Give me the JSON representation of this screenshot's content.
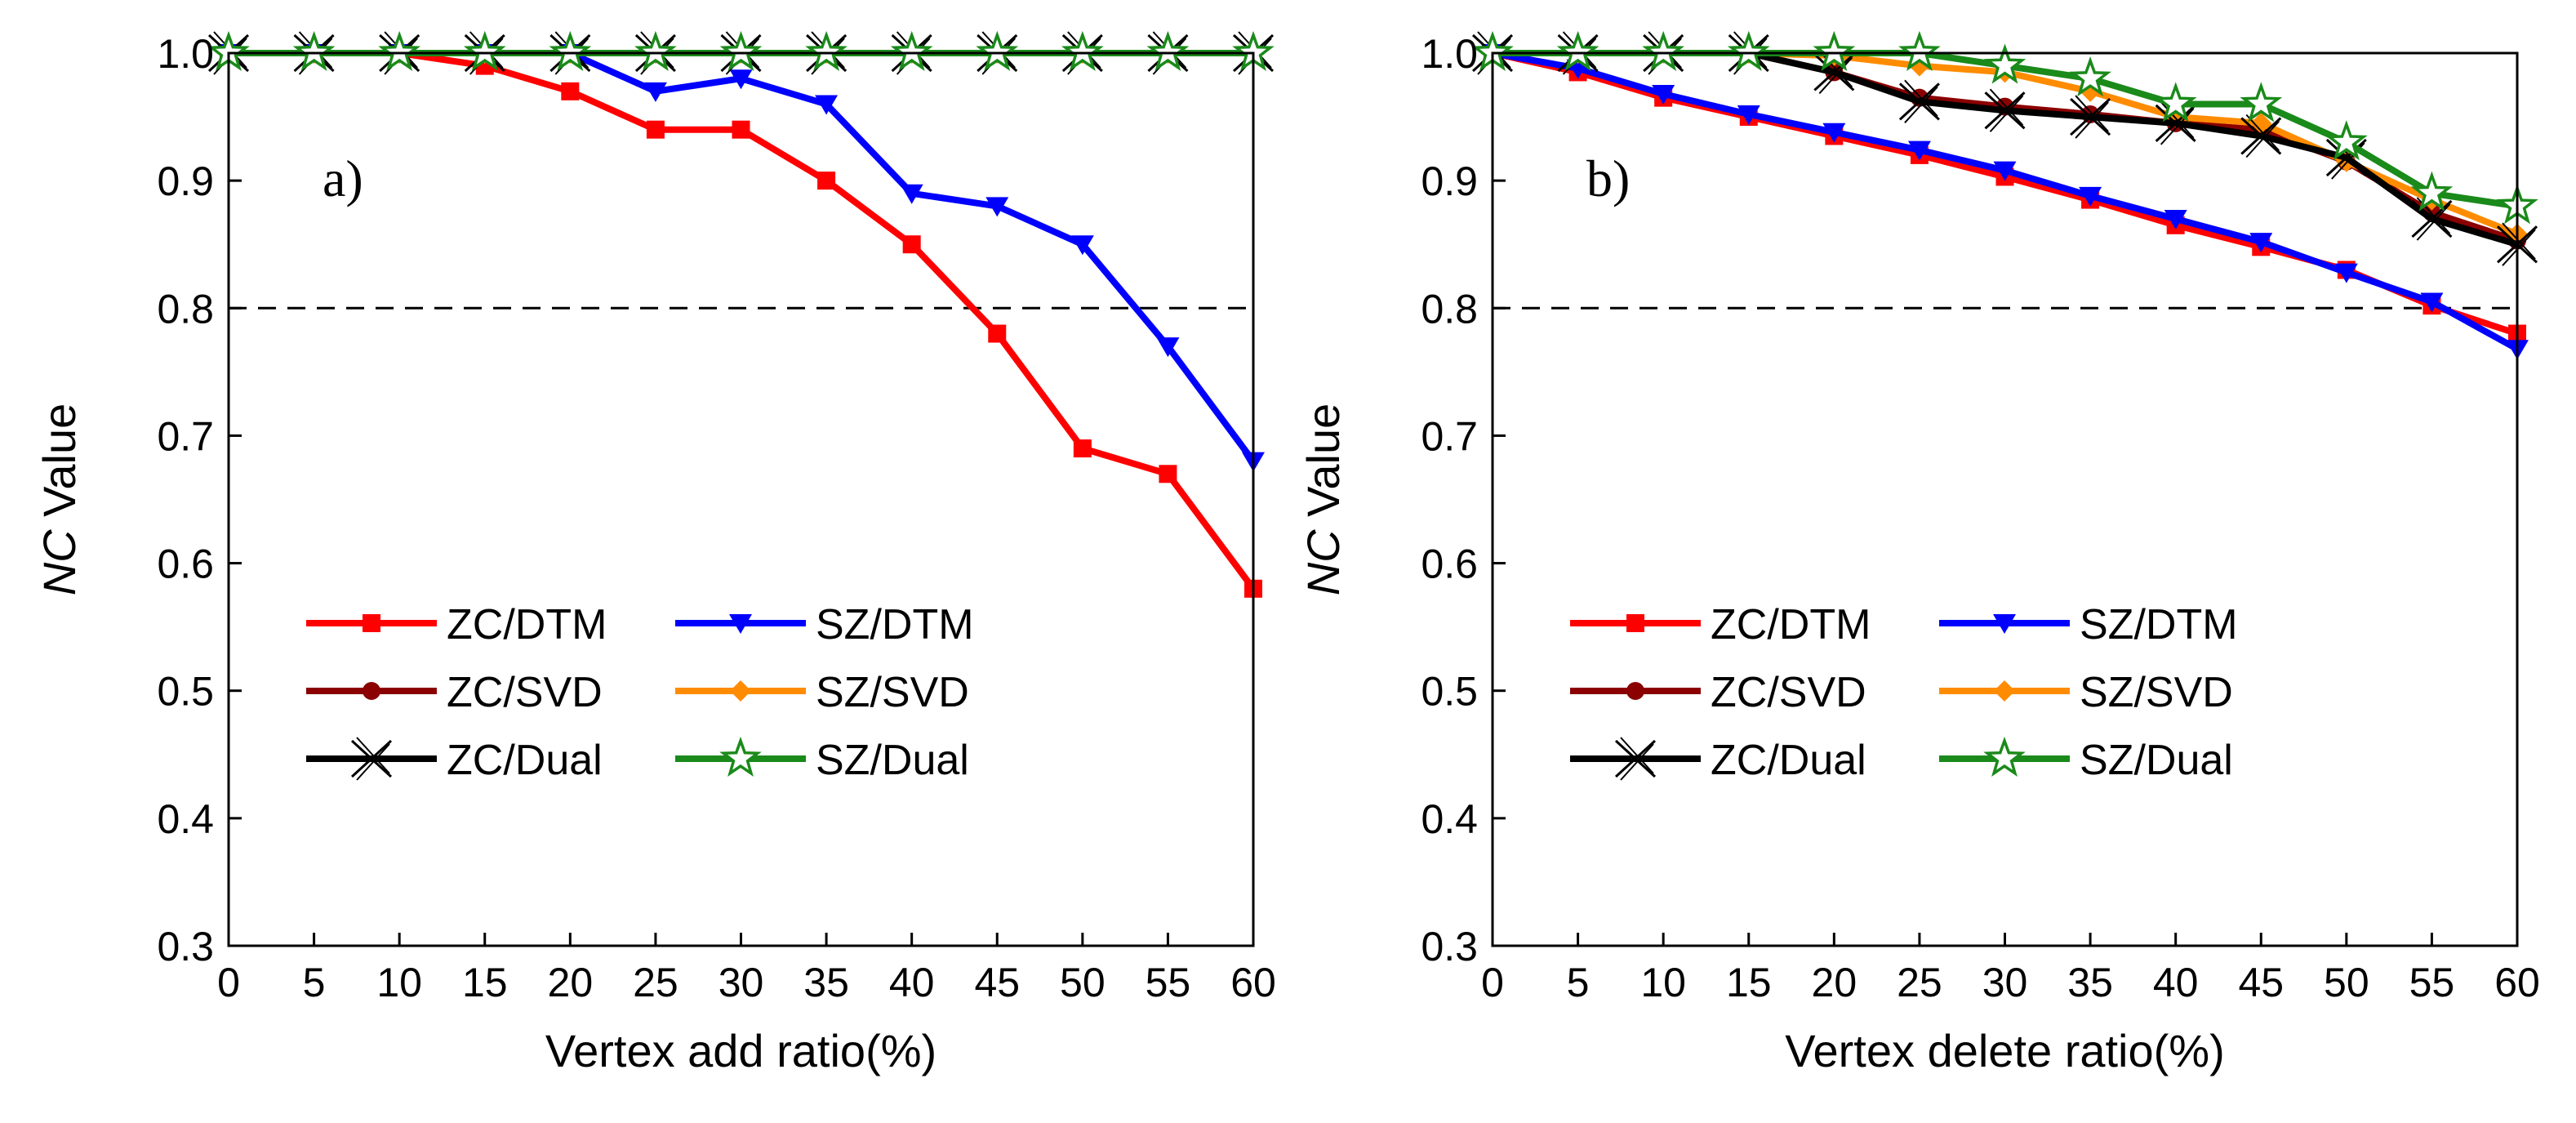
{
  "chart_data": [
    {
      "type": "line",
      "panel_label": "a)",
      "xlabel": "Vertex add ratio(%)",
      "ylabel_italic": "NC",
      "ylabel_rest": " Value",
      "xlim": [
        0,
        60
      ],
      "ylim": [
        0.3,
        1.0
      ],
      "x": [
        0,
        5,
        10,
        15,
        20,
        25,
        30,
        35,
        40,
        45,
        50,
        55,
        60
      ],
      "xticks": [
        "0",
        "5",
        "10",
        "15",
        "20",
        "25",
        "30",
        "35",
        "40",
        "45",
        "50",
        "55",
        "60"
      ],
      "yticks": [
        "0.3",
        "0.4",
        "0.5",
        "0.6",
        "0.7",
        "0.8",
        "0.9",
        "1.0"
      ],
      "threshold": 0.8,
      "legend_position": "lower-left",
      "series": [
        {
          "name": "ZC/DTM",
          "color": "#ff0000",
          "marker": "square",
          "values": [
            1.0,
            1.0,
            1.0,
            0.99,
            0.97,
            0.94,
            0.94,
            0.9,
            0.85,
            0.78,
            0.69,
            0.67,
            0.58
          ]
        },
        {
          "name": "SZ/DTM",
          "color": "#0000ff",
          "marker": "triangle-down",
          "values": [
            1.0,
            1.0,
            1.0,
            1.0,
            1.0,
            0.97,
            0.98,
            0.96,
            0.89,
            0.88,
            0.85,
            0.77,
            0.68
          ]
        },
        {
          "name": "ZC/SVD",
          "color": "#8b0000",
          "marker": "circle",
          "values": [
            1.0,
            1.0,
            1.0,
            1.0,
            1.0,
            1.0,
            1.0,
            1.0,
            1.0,
            1.0,
            1.0,
            1.0,
            1.0
          ]
        },
        {
          "name": "SZ/SVD",
          "color": "#ff8c00",
          "marker": "diamond",
          "values": [
            1.0,
            1.0,
            1.0,
            1.0,
            1.0,
            1.0,
            1.0,
            1.0,
            1.0,
            1.0,
            1.0,
            1.0,
            1.0
          ]
        },
        {
          "name": "ZC/Dual",
          "color": "#000000",
          "marker": "x",
          "values": [
            1.0,
            1.0,
            1.0,
            1.0,
            1.0,
            1.0,
            1.0,
            1.0,
            1.0,
            1.0,
            1.0,
            1.0,
            1.0
          ]
        },
        {
          "name": "SZ/Dual",
          "color": "#1a8a1a",
          "marker": "star",
          "values": [
            1.0,
            1.0,
            1.0,
            1.0,
            1.0,
            1.0,
            1.0,
            1.0,
            1.0,
            1.0,
            1.0,
            1.0,
            1.0
          ]
        }
      ]
    },
    {
      "type": "line",
      "panel_label": "b)",
      "xlabel": "Vertex delete ratio(%)",
      "ylabel_italic": "NC",
      "ylabel_rest": " Value",
      "xlim": [
        0,
        60
      ],
      "ylim": [
        0.3,
        1.0
      ],
      "x": [
        0,
        5,
        10,
        15,
        20,
        25,
        30,
        35,
        40,
        45,
        50,
        55,
        60
      ],
      "xticks": [
        "0",
        "5",
        "10",
        "15",
        "20",
        "25",
        "30",
        "35",
        "40",
        "45",
        "50",
        "55",
        "60"
      ],
      "yticks": [
        "0.3",
        "0.4",
        "0.5",
        "0.6",
        "0.7",
        "0.8",
        "0.9",
        "1.0"
      ],
      "threshold": 0.8,
      "legend_position": "lower-left",
      "series": [
        {
          "name": "ZC/DTM",
          "color": "#ff0000",
          "marker": "square",
          "values": [
            1.0,
            0.985,
            0.965,
            0.95,
            0.935,
            0.92,
            0.903,
            0.885,
            0.865,
            0.848,
            0.83,
            0.802,
            0.78
          ]
        },
        {
          "name": "SZ/DTM",
          "color": "#0000ff",
          "marker": "triangle-down",
          "values": [
            1.0,
            0.988,
            0.968,
            0.952,
            0.938,
            0.924,
            0.908,
            0.888,
            0.87,
            0.852,
            0.828,
            0.805,
            0.768
          ]
        },
        {
          "name": "ZC/SVD",
          "color": "#8b0000",
          "marker": "circle",
          "values": [
            1.0,
            1.0,
            1.0,
            1.0,
            0.985,
            0.965,
            0.958,
            0.952,
            0.945,
            0.94,
            0.915,
            0.875,
            0.853
          ]
        },
        {
          "name": "SZ/SVD",
          "color": "#ff8c00",
          "marker": "diamond",
          "values": [
            1.0,
            1.0,
            1.0,
            1.0,
            0.998,
            0.99,
            0.985,
            0.97,
            0.95,
            0.945,
            0.915,
            0.885,
            0.858
          ]
        },
        {
          "name": "ZC/Dual",
          "color": "#000000",
          "marker": "x",
          "values": [
            1.0,
            1.0,
            1.0,
            1.0,
            0.985,
            0.962,
            0.955,
            0.95,
            0.945,
            0.935,
            0.918,
            0.87,
            0.85
          ]
        },
        {
          "name": "SZ/Dual",
          "color": "#1a8a1a",
          "marker": "star",
          "values": [
            1.0,
            1.0,
            1.0,
            1.0,
            1.0,
            1.0,
            0.99,
            0.98,
            0.96,
            0.96,
            0.93,
            0.89,
            0.88
          ]
        }
      ]
    }
  ]
}
